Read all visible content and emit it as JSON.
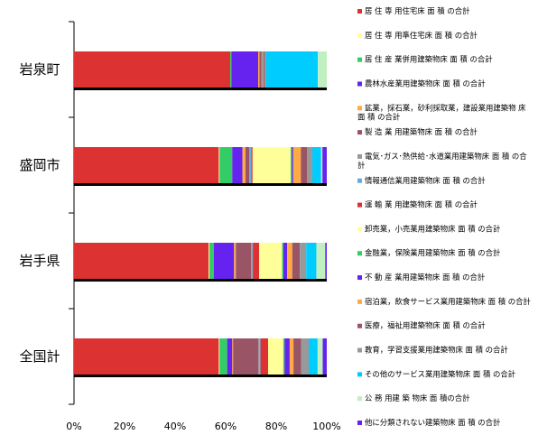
{
  "chart_data": {
    "type": "bar",
    "stacked": true,
    "orientation": "horizontal",
    "normalized_percent": true,
    "title": "",
    "xlabel": "",
    "ylabel": "",
    "xlim": [
      0,
      100
    ],
    "x_ticks": [
      "0%",
      "20%",
      "40%",
      "60%",
      "80%",
      "100%"
    ],
    "grid": false,
    "legend_position": "right",
    "categories": [
      "岩泉町",
      "盛岡市",
      "岩手県",
      "全国計"
    ],
    "series": [
      {
        "name": "居 住 専 用住宅床 面 積 の合計",
        "color": "#dc3232",
        "values": [
          61.5,
          57.0,
          53.0,
          57.0
        ]
      },
      {
        "name": "居 住 専 用準住宅床 面 積 の合計",
        "color": "#ffff99",
        "values": [
          0.0,
          0.3,
          0.3,
          0.3
        ]
      },
      {
        "name": "居 住 産 業併用建築物床 面 積 の合計",
        "color": "#33cc66",
        "values": [
          0.5,
          5.0,
          1.7,
          3.0
        ]
      },
      {
        "name": "農林水産業用建築物床 面 積 の合計",
        "color": "#6622ee",
        "values": [
          10.5,
          4.0,
          8.0,
          2.0
        ]
      },
      {
        "name": "鉱業，採石業，砂利採取業，建設業用建築物 床 面 積 の合計",
        "color": "#ffaa44",
        "values": [
          0.5,
          1.2,
          0.7,
          0.3
        ]
      },
      {
        "name": "製 造 業 用建築物床 面 積 の合計",
        "color": "#995566",
        "values": [
          0.8,
          1.5,
          6.0,
          10.0
        ]
      },
      {
        "name": "電気･ガス･熱供給･水道業用建築物床 面 積 の合計",
        "color": "#999999",
        "values": [
          0.5,
          0.3,
          0.5,
          0.5
        ]
      },
      {
        "name": "情報通信業用建築物床 面 積 の合計",
        "color": "#66aadd",
        "values": [
          0.0,
          0.5,
          0.2,
          0.3
        ]
      },
      {
        "name": "運 輸 業 用建築物床 面 積 の合計",
        "color": "#dc3232",
        "values": [
          0.0,
          0.5,
          2.5,
          3.0
        ]
      },
      {
        "name": "卸売業，小売業用建築物床 面 積 の合計",
        "color": "#ffff99",
        "values": [
          0.0,
          15.0,
          9.0,
          6.0
        ]
      },
      {
        "name": "金融業，保険業用建築物床 面 積 の合計",
        "color": "#33cc66",
        "values": [
          0.0,
          0.5,
          0.5,
          0.5
        ]
      },
      {
        "name": "不 動 産 業用建築物床 面 積 の合計",
        "color": "#6622ee",
        "values": [
          0.0,
          0.5,
          1.5,
          2.0
        ]
      },
      {
        "name": "宿泊業，飲食サービス業用建築物床 面 積 の合計",
        "color": "#ffaa44",
        "values": [
          0.2,
          3.0,
          2.0,
          1.5
        ]
      },
      {
        "name": "医療，福祉用建築物床 面 積 の合計",
        "color": "#995566",
        "values": [
          0.5,
          2.5,
          3.0,
          3.0
        ]
      },
      {
        "name": "教育，学習支援業用建築物床 面 積 の合計",
        "color": "#999999",
        "values": [
          0.5,
          2.0,
          2.5,
          3.0
        ]
      },
      {
        "name": "その他のサービス業用建築物床 面 積 の合計",
        "color": "#00ccff",
        "values": [
          20.5,
          3.5,
          4.0,
          3.5
        ]
      },
      {
        "name": "公 務 用建 築 物床 面 積の合計",
        "color": "#c0f0c0",
        "values": [
          3.5,
          0.5,
          3.5,
          2.0
        ]
      },
      {
        "name": "他に分類されない建築物床 面 積 の合計",
        "color": "#6622ee",
        "values": [
          0.0,
          1.7,
          0.6,
          1.6
        ]
      }
    ]
  }
}
